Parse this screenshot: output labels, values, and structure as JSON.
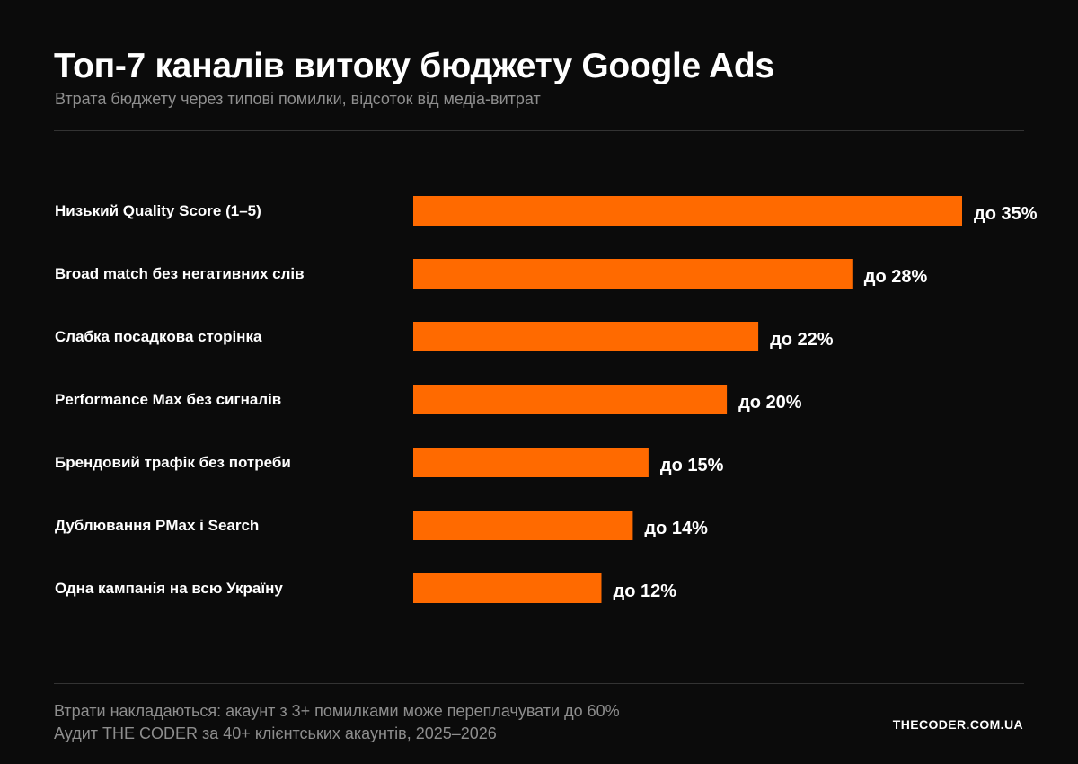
{
  "header": {
    "title": "Топ-7 каналів витоку бюджету Google Ads",
    "subtitle": "Втрата бюджету через типові помилки, відсоток від медіа-витрат"
  },
  "chart_data": {
    "type": "bar",
    "orientation": "horizontal",
    "categories": [
      "Низький Quality Score (1–5)",
      "Broad match без негативних слів",
      "Слабка посадкова сторінка",
      "Performance Max без сигналів",
      "Брендовий трафік без потреби",
      "Дублювання PMax і Search",
      "Одна кампанія на всю Україну"
    ],
    "values": [
      35,
      28,
      22,
      20,
      15,
      14,
      12
    ],
    "value_labels": [
      "до 35%",
      "до 28%",
      "до 22%",
      "до 20%",
      "до 15%",
      "до 14%",
      "до 12%"
    ],
    "unit": "%",
    "xlim": [
      0,
      35
    ],
    "grid": false,
    "legend": "none",
    "bar_color": "#ff6a00"
  },
  "footer": {
    "note_line1": "Втрати накладаються: акаунт з 3+ помилками може переплачувати до 60%",
    "note_line2": "Аудит THE CODER за 40+ клієнтських акаунтів, 2025–2026",
    "brand": "THECODER.COM.UA"
  },
  "colors": {
    "background": "#0b0b0b",
    "accent": "#ff6a00",
    "text": "#ffffff",
    "muted": "#8e8e8e",
    "divider": "#333333"
  }
}
